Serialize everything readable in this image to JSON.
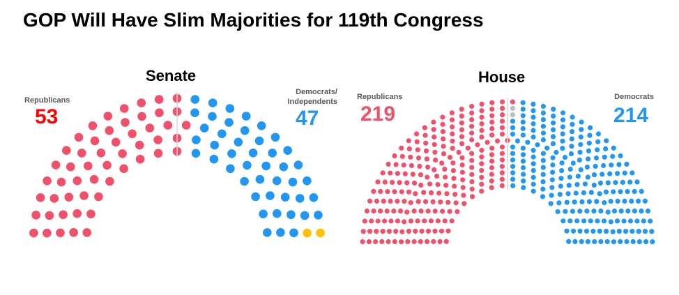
{
  "title": "GOP Will Have Slim Majorities for 119th Congress",
  "colors": {
    "republican": "#F0516A",
    "republican_count": "#FF0000",
    "democrat": "#2196F3",
    "independent": "#FFC107",
    "vacant": "#BDBDBD",
    "divider": "#D9D9D9"
  },
  "chart_data": [
    {
      "type": "parliament",
      "title": "Senate",
      "total_seats": 100,
      "series": [
        {
          "name": "Republicans",
          "label": "Republicans",
          "value": 53,
          "count_text": "53",
          "color": "#F0516A"
        },
        {
          "name": "Democrats/ Independents",
          "label": "Democrats/ Independents",
          "value": 47,
          "count_text": "47",
          "color": "#2196F3",
          "breakdown": [
            {
              "party": "Democrats",
              "seats": 45,
              "color": "#2196F3"
            },
            {
              "party": "Independents",
              "seats": 2,
              "color": "#FFC107"
            }
          ]
        }
      ]
    },
    {
      "type": "parliament",
      "title": "House",
      "total_seats": 435,
      "series": [
        {
          "name": "Republicans",
          "label": "Republicans",
          "value": 219,
          "count_text": "219",
          "color": "#F0516A"
        },
        {
          "name": "Vacant",
          "value": 2,
          "color": "#BDBDBD"
        },
        {
          "name": "Democrats",
          "label": "Democrats",
          "value": 214,
          "count_text": "214",
          "color": "#2196F3"
        }
      ]
    }
  ]
}
